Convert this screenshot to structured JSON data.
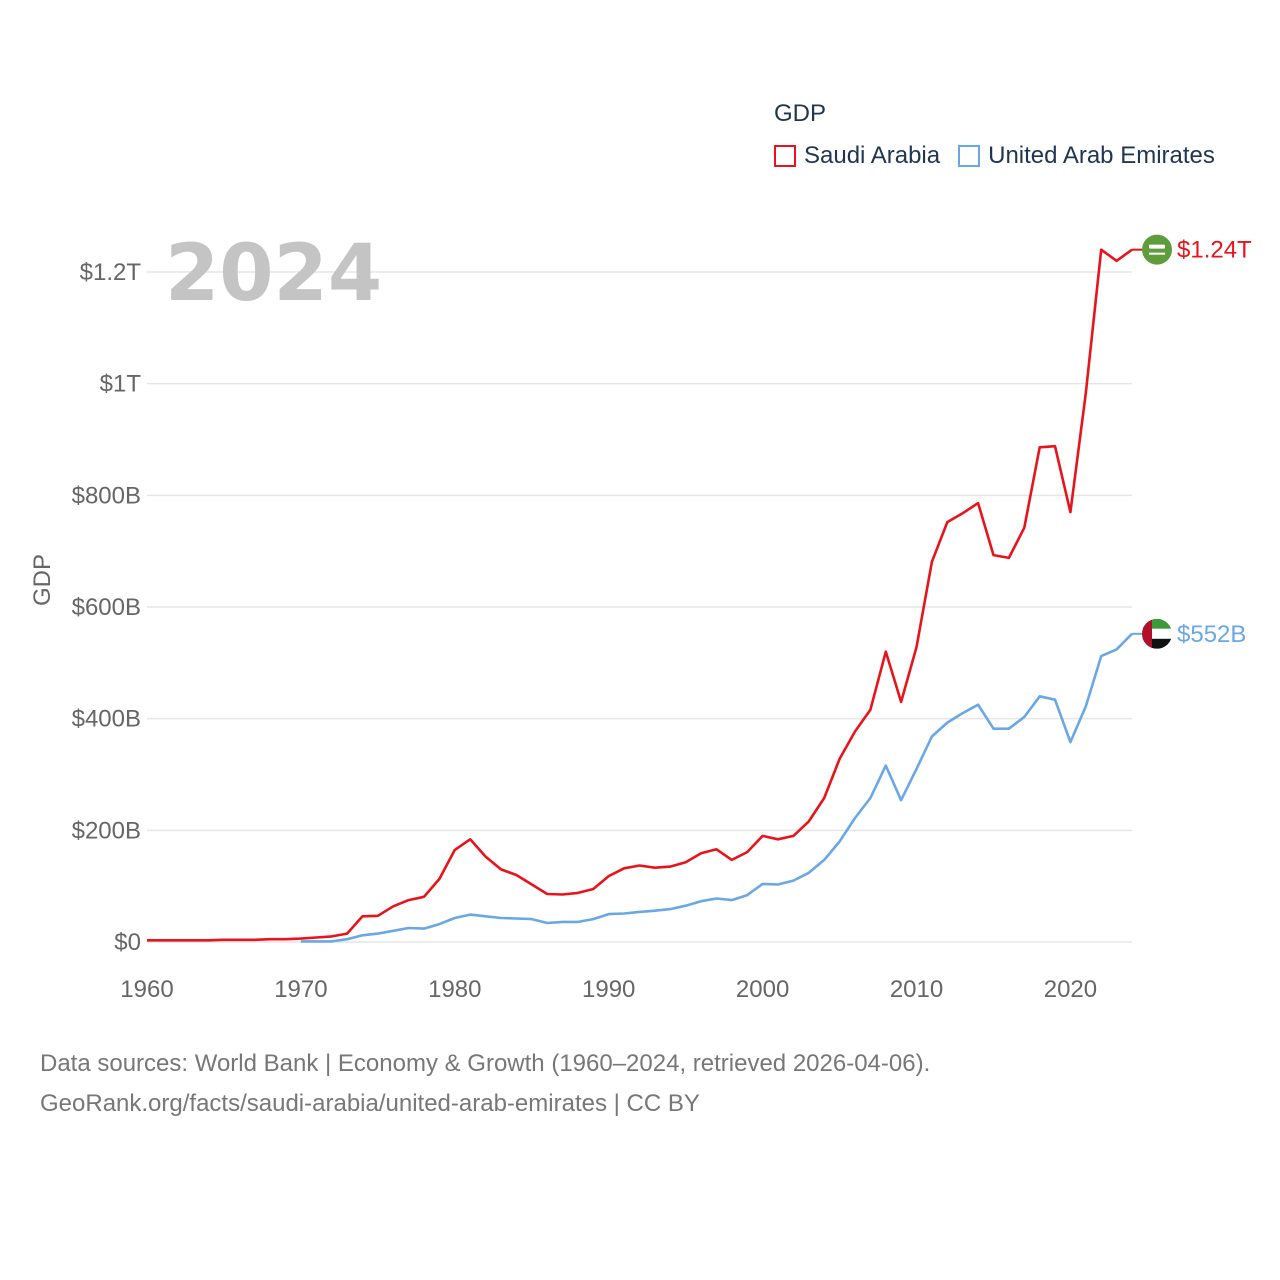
{
  "colors": {
    "saudi": "#e8131b",
    "uae": "#69a8e4",
    "grid": "#e6e6e6",
    "axis_text": "#666666",
    "year": "#c4c4c4"
  },
  "legend": {
    "title": "GDP",
    "items": [
      {
        "label": "Saudi Arabia"
      },
      {
        "label": "United Arab Emirates"
      }
    ]
  },
  "footer": {
    "line1": "Data sources: World Bank | Economy & Growth (1960–2024, retrieved 2026-04-06).",
    "line2": "GeoRank.org/facts/saudi-arabia/united-arab-emirates | CC BY"
  },
  "chart_data": {
    "type": "line",
    "title": "GDP",
    "year_label": "2024",
    "ylabel": "GDP",
    "xlabel": "",
    "xlim": [
      1960,
      2024
    ],
    "ylim": [
      0,
      1.3
    ],
    "y_unit": "trillion USD",
    "x_ticks": [
      "1960",
      "1970",
      "1980",
      "1990",
      "2000",
      "2010",
      "2020"
    ],
    "y_ticks": [
      {
        "value": 0,
        "label": "$0"
      },
      {
        "value": 0.2,
        "label": "$200B"
      },
      {
        "value": 0.4,
        "label": "$400B"
      },
      {
        "value": 0.6,
        "label": "$600B"
      },
      {
        "value": 0.8,
        "label": "$800B"
      },
      {
        "value": 1.0,
        "label": "$1T"
      },
      {
        "value": 1.2,
        "label": "$1.2T"
      }
    ],
    "series": [
      {
        "name": "Saudi Arabia",
        "end_label": "$1.24T",
        "flag_icon": "saudi-flag-icon",
        "x": [
          1960,
          1961,
          1962,
          1963,
          1964,
          1965,
          1966,
          1967,
          1968,
          1969,
          1970,
          1971,
          1972,
          1973,
          1974,
          1975,
          1976,
          1977,
          1978,
          1979,
          1980,
          1981,
          1982,
          1983,
          1984,
          1985,
          1986,
          1987,
          1988,
          1989,
          1990,
          1991,
          1992,
          1993,
          1994,
          1995,
          1996,
          1997,
          1998,
          1999,
          2000,
          2001,
          2002,
          2003,
          2004,
          2005,
          2006,
          2007,
          2008,
          2009,
          2010,
          2011,
          2012,
          2013,
          2014,
          2015,
          2016,
          2017,
          2018,
          2019,
          2020,
          2021,
          2022,
          2023,
          2024
        ],
        "values": [
          0.003,
          0.003,
          0.003,
          0.003,
          0.003,
          0.004,
          0.004,
          0.004,
          0.005,
          0.005,
          0.006,
          0.008,
          0.01,
          0.015,
          0.046,
          0.047,
          0.064,
          0.075,
          0.081,
          0.113,
          0.165,
          0.184,
          0.153,
          0.13,
          0.12,
          0.103,
          0.086,
          0.085,
          0.088,
          0.095,
          0.118,
          0.132,
          0.137,
          0.133,
          0.135,
          0.143,
          0.159,
          0.166,
          0.147,
          0.161,
          0.19,
          0.184,
          0.19,
          0.216,
          0.258,
          0.328,
          0.377,
          0.416,
          0.52,
          0.43,
          0.528,
          0.681,
          0.752,
          0.768,
          0.786,
          0.693,
          0.688,
          0.742,
          0.886,
          0.888,
          0.77,
          0.983,
          1.24,
          1.22,
          1.24
        ]
      },
      {
        "name": "United Arab Emirates",
        "end_label": "$552B",
        "flag_icon": "uae-flag-icon",
        "x": [
          1970,
          1971,
          1972,
          1973,
          1974,
          1975,
          1976,
          1977,
          1978,
          1979,
          1980,
          1981,
          1982,
          1983,
          1984,
          1985,
          1986,
          1987,
          1988,
          1989,
          1990,
          1991,
          1992,
          1993,
          1994,
          1995,
          1996,
          1997,
          1998,
          1999,
          2000,
          2001,
          2002,
          2003,
          2004,
          2005,
          2006,
          2007,
          2008,
          2009,
          2010,
          2011,
          2012,
          2013,
          2014,
          2015,
          2016,
          2017,
          2018,
          2019,
          2020,
          2021,
          2022,
          2023,
          2024
        ],
        "values": [
          0.001,
          0.001,
          0.001,
          0.005,
          0.012,
          0.015,
          0.02,
          0.025,
          0.024,
          0.032,
          0.043,
          0.049,
          0.046,
          0.043,
          0.042,
          0.041,
          0.034,
          0.036,
          0.036,
          0.041,
          0.05,
          0.051,
          0.054,
          0.056,
          0.059,
          0.065,
          0.073,
          0.078,
          0.075,
          0.084,
          0.104,
          0.103,
          0.11,
          0.124,
          0.147,
          0.18,
          0.222,
          0.258,
          0.316,
          0.254,
          0.31,
          0.368,
          0.393,
          0.41,
          0.425,
          0.382,
          0.382,
          0.403,
          0.44,
          0.434,
          0.358,
          0.422,
          0.512,
          0.524,
          0.552
        ]
      }
    ]
  }
}
